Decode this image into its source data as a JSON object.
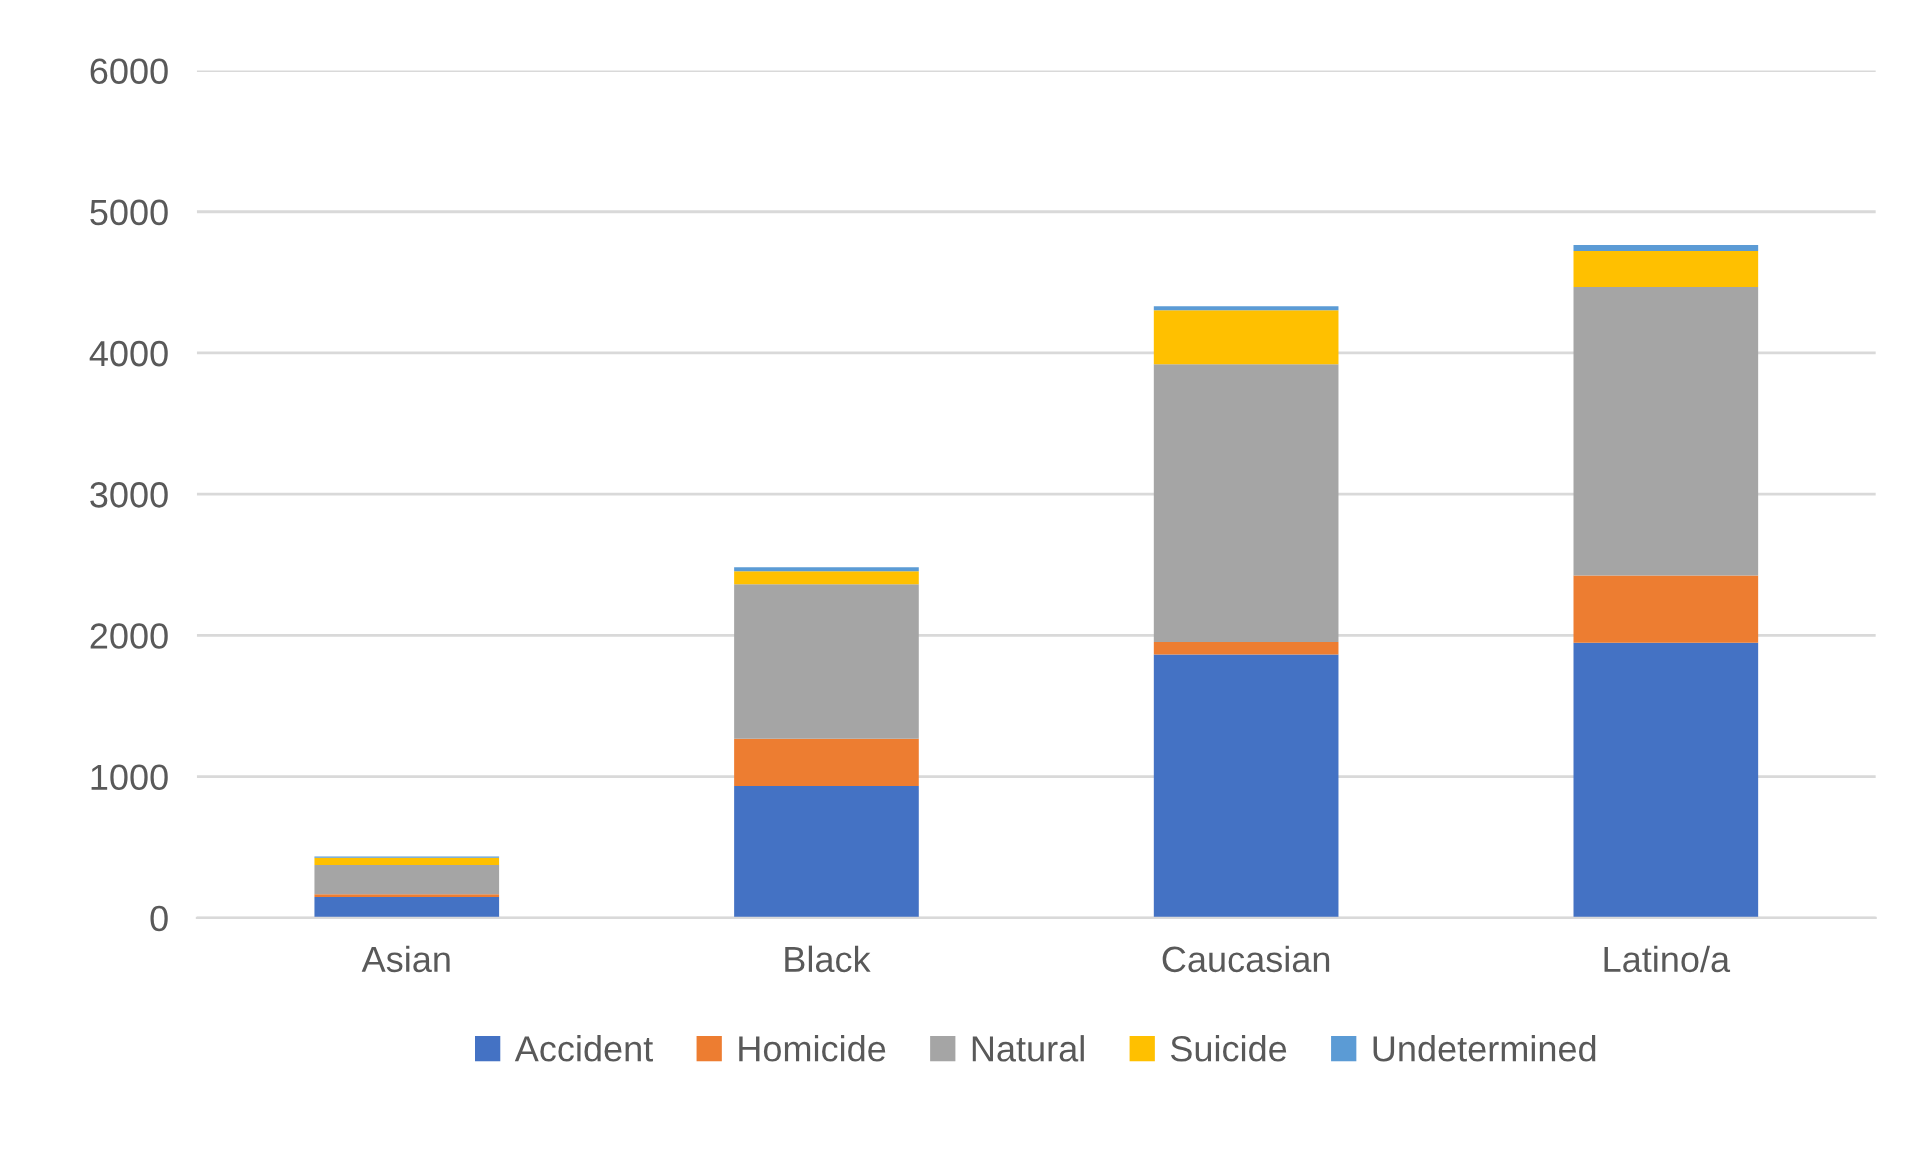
{
  "chart_data": {
    "type": "bar",
    "stacked": true,
    "categories": [
      "Asian",
      "Black",
      "Caucasian",
      "Latino/a"
    ],
    "series": [
      {
        "name": "Accident",
        "color": "#4472c4",
        "values": [
          147,
          934,
          1864,
          1948
        ]
      },
      {
        "name": "Homicide",
        "color": "#ed7d31",
        "values": [
          20,
          335,
          89,
          477
        ]
      },
      {
        "name": "Natural",
        "color": "#a5a5a5",
        "values": [
          208,
          1094,
          1967,
          2042
        ]
      },
      {
        "name": "Suicide",
        "color": "#ffc000",
        "values": [
          50,
          91,
          382,
          255
        ]
      },
      {
        "name": "Undetermined",
        "color": "#5b9bd5",
        "values": [
          10,
          28,
          28,
          42
        ]
      }
    ],
    "ylim": [
      0,
      6000
    ],
    "yticks": [
      0,
      1000,
      2000,
      3000,
      4000,
      5000,
      6000
    ],
    "grid": "y",
    "legend": "bottom"
  }
}
